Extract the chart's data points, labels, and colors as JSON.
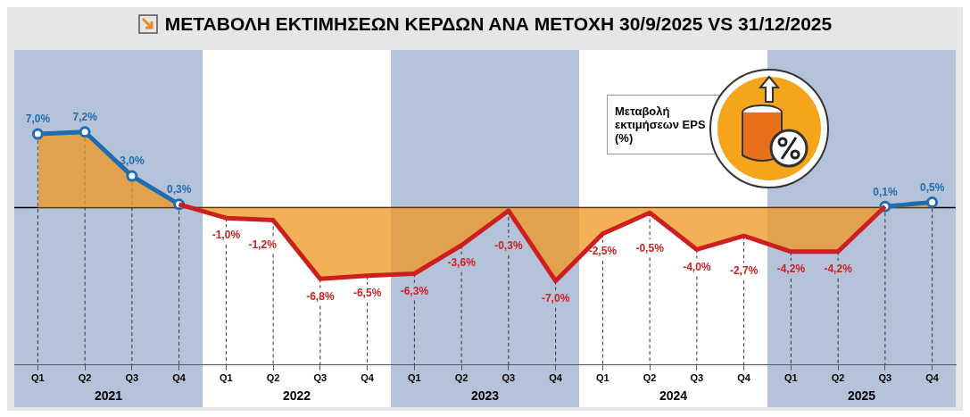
{
  "chart_data": {
    "type": "area",
    "title": "ΜΕΤΑΒΟΛΗ ΕΚΤΙΜΗΣΕΩΝ ΚΕΡΔΩΝ ΑΝΑ ΜΕΤΟΧΗ 30/9/2025 VS 31/12/2025",
    "annotations": [
      "Μεταβολή εκτιμήσεων EPS (%)",
      "2021",
      "2022",
      "2023",
      "2024",
      "2025"
    ],
    "categories": [
      "Q1",
      "Q2",
      "Q3",
      "Q4",
      "Q1",
      "Q2",
      "Q3",
      "Q4",
      "Q1",
      "Q2",
      "Q3",
      "Q4",
      "Q1",
      "Q2",
      "Q3",
      "Q4",
      "Q1",
      "Q2",
      "Q3",
      "Q4"
    ],
    "series": [
      {
        "color": "#cc1f1f",
        "marker": "none",
        "values": [
          null,
          null,
          null,
          0.3,
          -1.0,
          -1.2,
          -6.8,
          -6.5,
          -6.3,
          -3.6,
          -0.3,
          -7.0,
          -2.5,
          -0.5,
          -4.0,
          -2.7,
          -4.2,
          -4.2,
          0.1,
          null
        ],
        "value_labels": [
          null,
          null,
          null,
          null,
          "-1,0%",
          "-1,2%",
          "-6,8%",
          "-6,5%",
          "-6,3%",
          "-3,6%",
          "-0,3%",
          "-7,0%",
          "-2,5%",
          "-0,5%",
          "-4,0%",
          "-2,7%",
          "-4,2%",
          "-4,2%",
          null,
          null
        ]
      },
      {
        "color": "#1f6db0",
        "marker": "circle",
        "values": [
          7.0,
          7.2,
          3.0,
          0.3,
          null,
          null,
          null,
          null,
          null,
          null,
          null,
          null,
          null,
          null,
          null,
          null,
          null,
          null,
          0.1,
          0.5
        ],
        "value_labels": [
          "7,0%",
          "7,2%",
          "3,0%",
          "0,3%",
          null,
          null,
          null,
          null,
          null,
          null,
          null,
          null,
          null,
          null,
          null,
          null,
          null,
          null,
          "0,1%",
          "0,5%"
        ]
      }
    ],
    "ref_lines": [
      {
        "axis": "y",
        "value": 0,
        "color": "#000000"
      }
    ],
    "grid": "x",
    "legend": false
  }
}
